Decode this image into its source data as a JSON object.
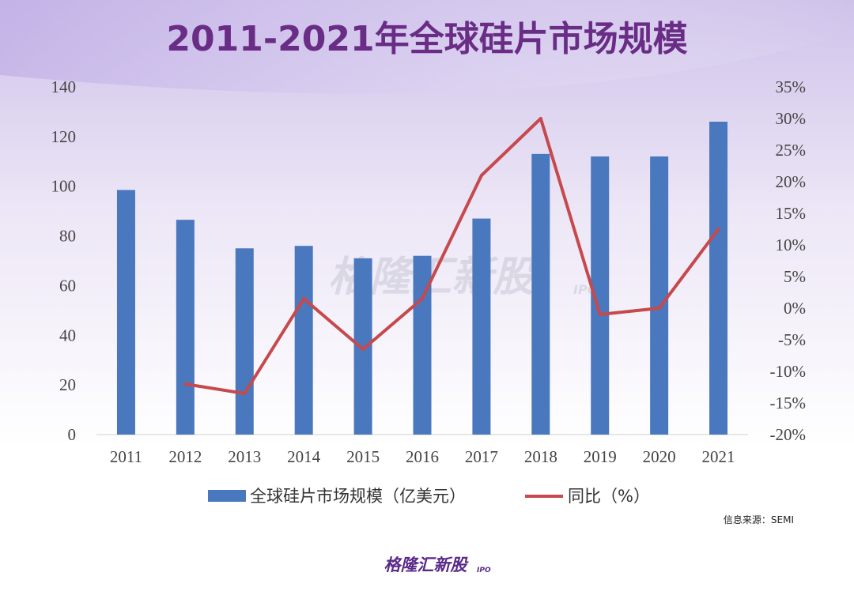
{
  "chart_data": {
    "type": "bar",
    "title": "2011-2021年全球硅片市场规模",
    "categories": [
      "2011",
      "2012",
      "2013",
      "2014",
      "2015",
      "2016",
      "2017",
      "2018",
      "2019",
      "2020",
      "2021"
    ],
    "series": [
      {
        "name": "全球硅片市场规模（亿美元）",
        "type": "bar",
        "axis": "left",
        "color": "#4a78be",
        "values": [
          98.5,
          86.5,
          75,
          76,
          71,
          72,
          87,
          113,
          112,
          112,
          126
        ]
      },
      {
        "name": "同比（%）",
        "type": "line",
        "axis": "right",
        "color": "#c5494d",
        "values": [
          null,
          -12,
          -13.5,
          1.5,
          -6.5,
          1.5,
          21,
          30,
          -1,
          0,
          12.5
        ]
      }
    ],
    "y_left": {
      "ylim": [
        0,
        140
      ],
      "ticks": [
        "0",
        "20",
        "40",
        "60",
        "80",
        "100",
        "120",
        "140"
      ]
    },
    "y_right": {
      "ylim": [
        -20,
        35
      ],
      "ticks": [
        "-20%",
        "-15%",
        "-10%",
        "-5%",
        "0%",
        "5%",
        "10%",
        "15%",
        "20%",
        "25%",
        "30%",
        "35%"
      ]
    },
    "legend_position": "bottom",
    "grid": false,
    "source": "信息来源：SEMI"
  },
  "watermark": {
    "text": "格隆汇新股",
    "sub": "IPO",
    "logo_text": "格隆汇"
  },
  "colors": {
    "title": "#6a2d86",
    "bg_top": "#d8cdee",
    "bg_bottom": "#ffffff"
  }
}
